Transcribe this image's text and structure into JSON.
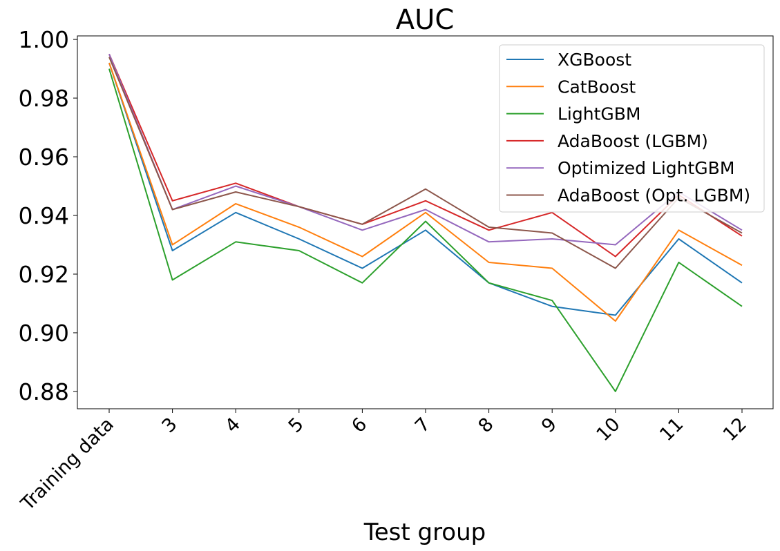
{
  "chart_data": {
    "type": "line",
    "title": "AUC",
    "xlabel": "Test group",
    "ylabel": "",
    "categories": [
      "Training data",
      "3",
      "4",
      "5",
      "6",
      "7",
      "8",
      "9",
      "10",
      "11",
      "12"
    ],
    "ylim": [
      0.8741,
      1.0012
    ],
    "yticks": [
      "0.88",
      "0.90",
      "0.92",
      "0.94",
      "0.96",
      "0.98",
      "1.00"
    ],
    "legend_position": "upper-right",
    "grid": false,
    "series": [
      {
        "name": "XGBoost",
        "color": "#1f77b4",
        "values": [
          0.992,
          0.928,
          0.941,
          0.932,
          0.922,
          0.935,
          0.917,
          0.909,
          0.906,
          0.932,
          0.917
        ]
      },
      {
        "name": "CatBoost",
        "color": "#ff7f0e",
        "values": [
          0.992,
          0.93,
          0.944,
          0.936,
          0.926,
          0.941,
          0.924,
          0.922,
          0.904,
          0.935,
          0.923
        ]
      },
      {
        "name": "LightGBM",
        "color": "#2ca02c",
        "values": [
          0.99,
          0.918,
          0.931,
          0.928,
          0.917,
          0.938,
          0.917,
          0.911,
          0.88,
          0.924,
          0.909
        ]
      },
      {
        "name": "AdaBoost (LGBM)",
        "color": "#d62728",
        "values": [
          0.995,
          0.945,
          0.951,
          0.943,
          0.937,
          0.945,
          0.935,
          0.941,
          0.926,
          0.947,
          0.933
        ]
      },
      {
        "name": "Optimized LightGBM",
        "color": "#9467bd",
        "values": [
          0.995,
          0.942,
          0.95,
          0.943,
          0.935,
          0.942,
          0.931,
          0.932,
          0.93,
          0.948,
          0.935
        ]
      },
      {
        "name": "AdaBoost (Opt. LGBM)",
        "color": "#8c564b",
        "values": [
          0.994,
          0.942,
          0.948,
          0.943,
          0.937,
          0.949,
          0.936,
          0.934,
          0.922,
          0.946,
          0.934
        ]
      }
    ]
  }
}
